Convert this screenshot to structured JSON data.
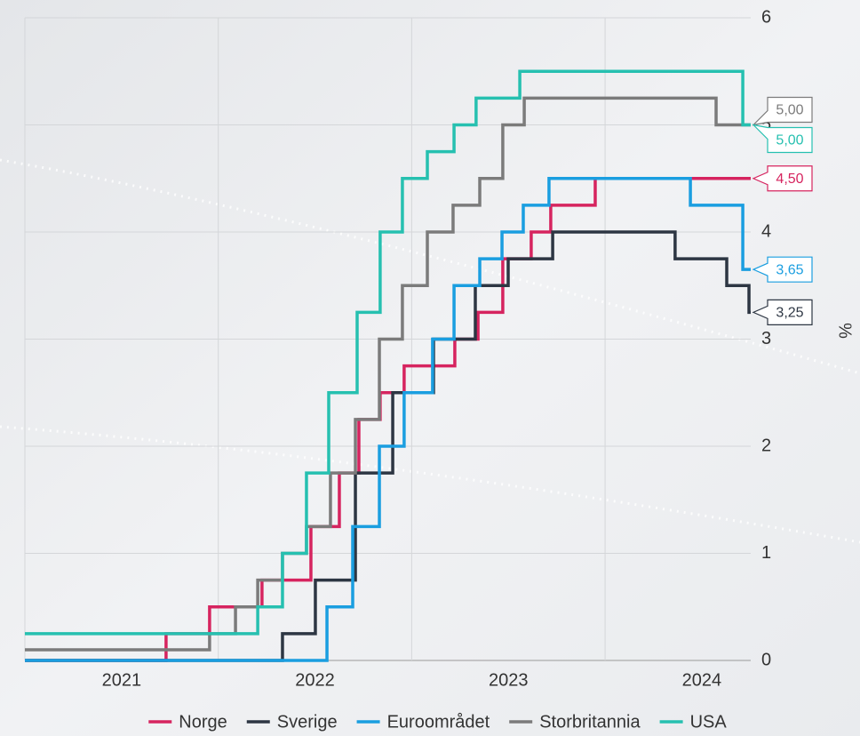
{
  "chart_data": {
    "type": "step-line",
    "y_axis_label": "%",
    "xlim": [
      2021,
      2024.753
    ],
    "xticks": [
      {
        "value": 2021.5,
        "label": "2021"
      },
      {
        "value": 2022.5,
        "label": "2022"
      },
      {
        "value": 2023.5,
        "label": "2023"
      },
      {
        "value": 2024.5,
        "label": "2024"
      }
    ],
    "xgrid": [
      2022,
      2023,
      2024
    ],
    "ylim": [
      0,
      6
    ],
    "yticks": [
      0,
      1,
      2,
      3,
      4,
      5,
      6
    ],
    "grid": true,
    "legend": "bottom",
    "series": [
      {
        "name": "Norge",
        "color": "#d6245f",
        "x": [
          2021,
          2021.73,
          2021.955,
          2022.226,
          2022.479,
          2022.626,
          2022.727,
          2022.837,
          2022.961,
          2023.223,
          2023.343,
          2023.471,
          2023.618,
          2023.719,
          2023.949,
          2024.753
        ],
        "values": [
          0,
          0.25,
          0.5,
          0.75,
          1.25,
          1.75,
          2.25,
          2.5,
          2.75,
          3.0,
          3.25,
          3.75,
          4.0,
          4.25,
          4.5,
          4.5
        ],
        "value_labels": [
          null,
          null,
          null,
          null,
          null,
          null,
          null,
          null,
          null,
          null,
          null,
          null,
          null,
          null,
          null,
          "4,50"
        ]
      },
      {
        "name": "Sverige",
        "color": "#2d3643",
        "x": [
          2021,
          2022.332,
          2022.502,
          2022.709,
          2022.902,
          2023.113,
          2023.329,
          2023.499,
          2023.729,
          2024.362,
          2024.629,
          2024.744,
          2024.753
        ],
        "values": [
          0,
          0.25,
          0.75,
          1.75,
          2.5,
          3.0,
          3.5,
          3.75,
          4.0,
          3.75,
          3.5,
          3.25,
          3.25
        ],
        "value_labels": [
          null,
          null,
          null,
          null,
          null,
          null,
          null,
          null,
          null,
          null,
          null,
          null,
          "3,25"
        ]
      },
      {
        "name": "Euroområdet",
        "color": "#1a9ee0",
        "x": [
          2021,
          2022.562,
          2022.695,
          2022.833,
          2022.961,
          2023.108,
          2023.219,
          2023.352,
          2023.467,
          2023.577,
          2023.71,
          2024.441,
          2024.712,
          2024.753
        ],
        "values": [
          0,
          0.5,
          1.25,
          2.0,
          2.5,
          3.0,
          3.5,
          3.75,
          4.0,
          4.25,
          4.5,
          4.25,
          3.65,
          3.65
        ],
        "value_labels": [
          null,
          null,
          null,
          null,
          null,
          null,
          null,
          null,
          null,
          null,
          null,
          null,
          null,
          "3,65"
        ]
      },
      {
        "name": "Storbritannia",
        "color": "#7b7b7b",
        "x": [
          2021,
          2021.955,
          2022.089,
          2022.204,
          2022.332,
          2022.456,
          2022.58,
          2022.709,
          2022.833,
          2022.952,
          2023.081,
          2023.214,
          2023.352,
          2023.471,
          2023.582,
          2024.574,
          2024.753
        ],
        "values": [
          0.1,
          0.25,
          0.5,
          0.75,
          1.0,
          1.25,
          1.75,
          2.25,
          3.0,
          3.5,
          4.0,
          4.25,
          4.5,
          5.0,
          5.25,
          5.0,
          5.0
        ],
        "value_labels": [
          null,
          null,
          null,
          null,
          null,
          null,
          null,
          null,
          null,
          null,
          null,
          null,
          null,
          null,
          null,
          null,
          "5,00"
        ]
      },
      {
        "name": "USA",
        "color": "#26c0b0",
        "x": [
          2021,
          2022.204,
          2022.332,
          2022.456,
          2022.571,
          2022.718,
          2022.837,
          2022.952,
          2023.081,
          2023.219,
          2023.333,
          2023.559,
          2024.712,
          2024.753
        ],
        "values": [
          0.25,
          0.5,
          1.0,
          1.75,
          2.5,
          3.25,
          4.0,
          4.5,
          4.75,
          5.0,
          5.25,
          5.5,
          5.0,
          5.0
        ],
        "value_labels": [
          null,
          null,
          null,
          null,
          null,
          null,
          null,
          null,
          null,
          null,
          null,
          null,
          null,
          "5,00"
        ]
      }
    ]
  }
}
